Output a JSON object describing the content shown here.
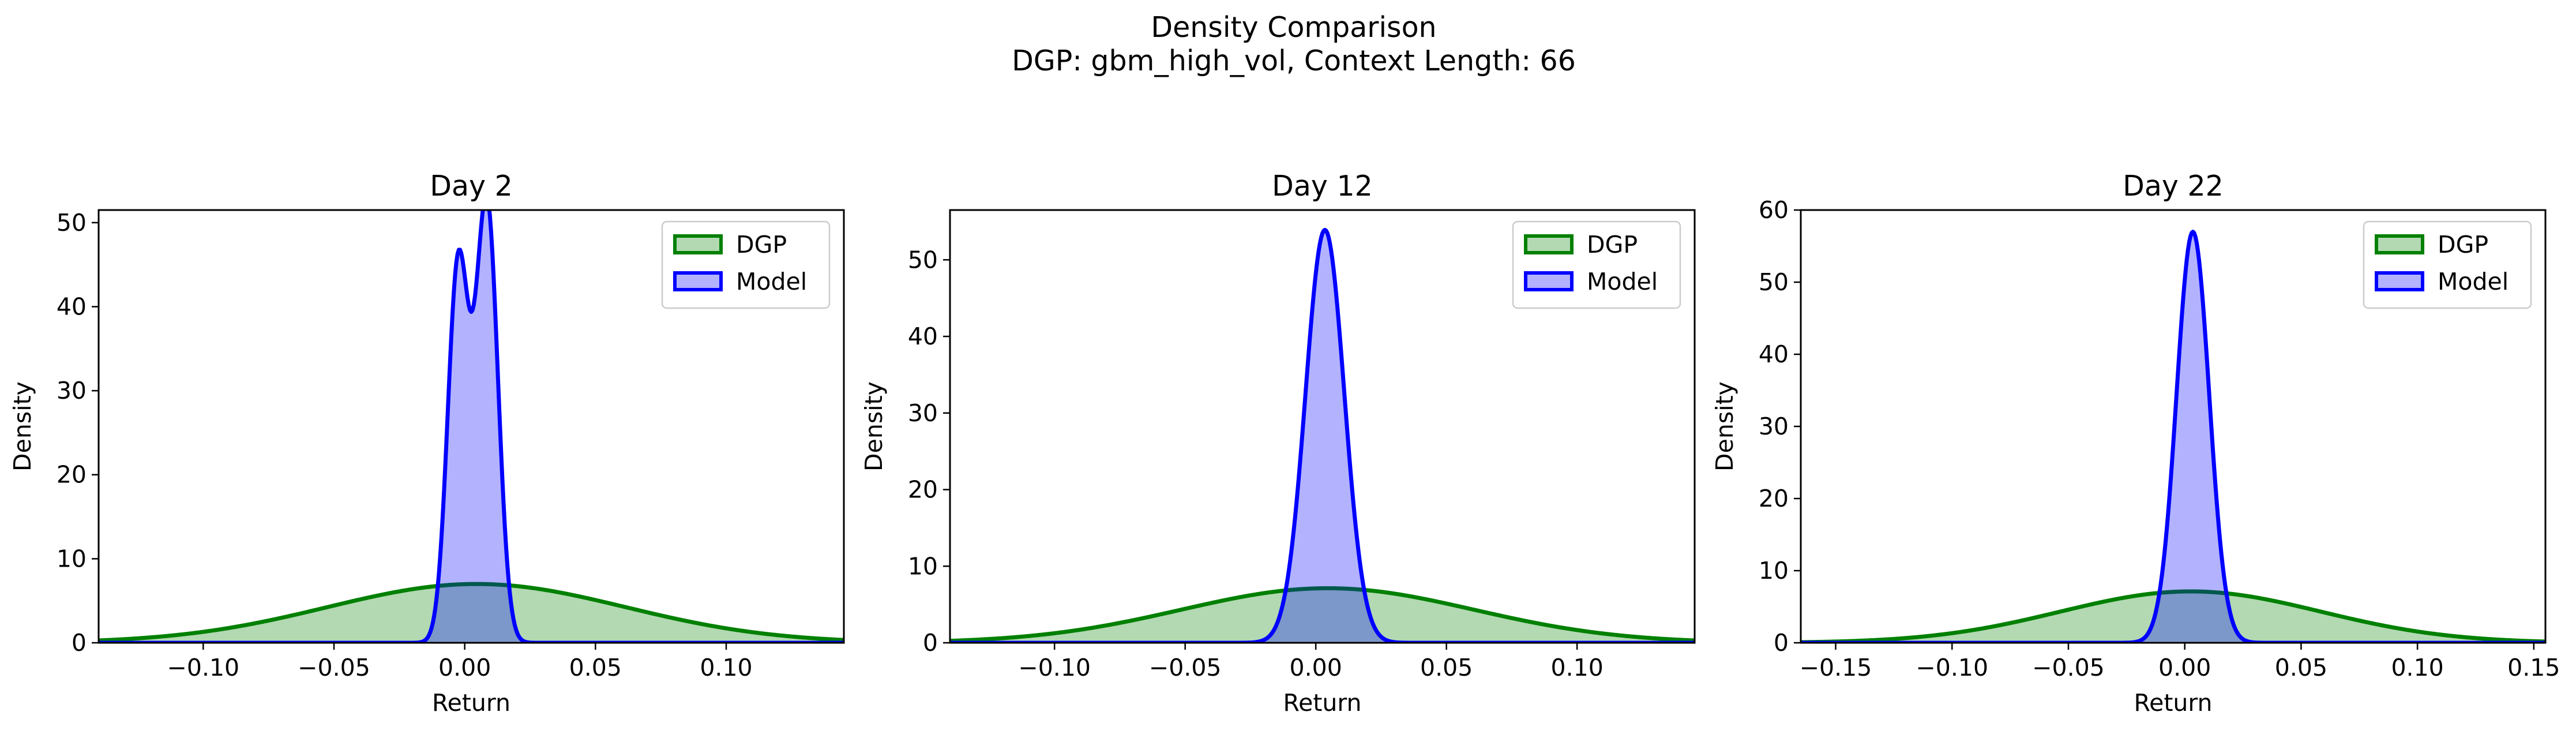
{
  "figure": {
    "title": "Density Comparison",
    "subtitle": "DGP: gbm_high_vol, Context Length: 66"
  },
  "chart_data": [
    {
      "type": "area",
      "title": "Day 2",
      "xlabel": "Return",
      "ylabel": "Density",
      "xlim": [
        -0.14,
        0.145
      ],
      "ylim": [
        0,
        51.5
      ],
      "xticks": [
        -0.1,
        -0.05,
        0.0,
        0.05,
        0.1
      ],
      "xtick_labels": [
        "−0.10",
        "−0.05",
        "0.00",
        "0.05",
        "0.10"
      ],
      "yticks": [
        0,
        10,
        20,
        30,
        40,
        50
      ],
      "ytick_labels": [
        "0",
        "10",
        "20",
        "30",
        "40",
        "50"
      ],
      "legend_position": "top-right",
      "series": [
        {
          "name": "DGP",
          "color": "#008000",
          "components": [
            {
              "weight": 1.0,
              "mean": 0.0045,
              "sd": 0.057
            }
          ]
        },
        {
          "name": "Model",
          "color": "#0000ff",
          "components": [
            {
              "weight": 0.45,
              "mean": -0.0025,
              "sd": 0.004
            },
            {
              "weight": 0.55,
              "mean": 0.0085,
              "sd": 0.0042
            }
          ]
        }
      ]
    },
    {
      "type": "area",
      "title": "Day 12",
      "xlabel": "Return",
      "ylabel": "Density",
      "xlim": [
        -0.14,
        0.145
      ],
      "ylim": [
        0,
        56.5
      ],
      "xticks": [
        -0.1,
        -0.05,
        0.0,
        0.05,
        0.1
      ],
      "xtick_labels": [
        "−0.10",
        "−0.05",
        "0.00",
        "0.05",
        "0.10"
      ],
      "yticks": [
        0,
        10,
        20,
        30,
        40,
        50
      ],
      "ytick_labels": [
        "0",
        "10",
        "20",
        "30",
        "40",
        "50"
      ],
      "legend_position": "top-right",
      "series": [
        {
          "name": "DGP",
          "color": "#008000",
          "components": [
            {
              "weight": 1.0,
              "mean": 0.0045,
              "sd": 0.056
            }
          ]
        },
        {
          "name": "Model",
          "color": "#0000ff",
          "components": [
            {
              "weight": 1.0,
              "mean": 0.0035,
              "sd": 0.0074
            }
          ]
        }
      ]
    },
    {
      "type": "area",
      "title": "Day 22",
      "xlabel": "Return",
      "ylabel": "Density",
      "xlim": [
        -0.165,
        0.155
      ],
      "ylim": [
        0,
        60
      ],
      "xticks": [
        -0.15,
        -0.1,
        -0.05,
        0.0,
        0.05,
        0.1,
        0.15
      ],
      "xtick_labels": [
        "−0.15",
        "−0.10",
        "−0.05",
        "0.00",
        "0.05",
        "0.10",
        "0.15"
      ],
      "yticks": [
        0,
        10,
        20,
        30,
        40,
        50,
        60
      ],
      "ytick_labels": [
        "0",
        "10",
        "20",
        "30",
        "40",
        "50",
        "60"
      ],
      "legend_position": "top-right",
      "series": [
        {
          "name": "DGP",
          "color": "#008000",
          "components": [
            {
              "weight": 1.0,
              "mean": 0.0025,
              "sd": 0.056
            }
          ]
        },
        {
          "name": "Model",
          "color": "#0000ff",
          "components": [
            {
              "weight": 1.0,
              "mean": 0.0035,
              "sd": 0.007
            }
          ]
        }
      ]
    }
  ]
}
